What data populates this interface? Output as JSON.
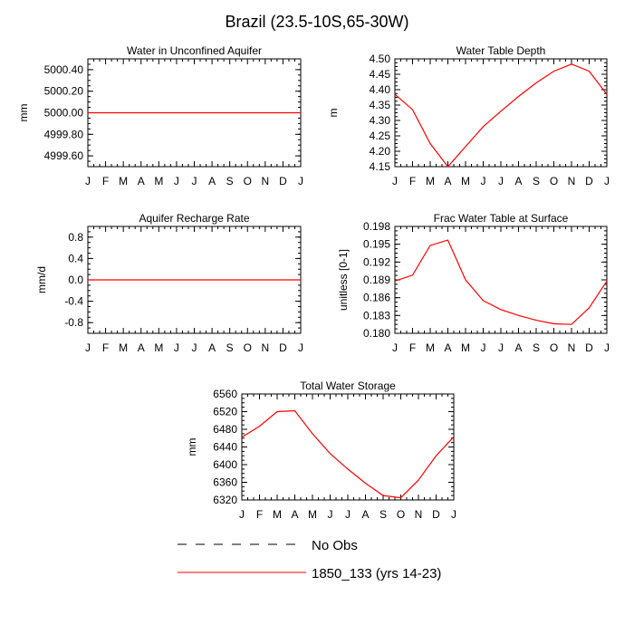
{
  "page": {
    "title": "Brazil (23.5-10S,65-30W)"
  },
  "colors": {
    "model": "#ff0000",
    "obs": "#000000",
    "axis": "#000000"
  },
  "chart_data": [
    {
      "type": "line",
      "title": "Water in Unconfined Aquifer",
      "ylabel": "mm",
      "categories": [
        "J",
        "F",
        "M",
        "A",
        "M",
        "J",
        "J",
        "A",
        "S",
        "O",
        "N",
        "D",
        "J"
      ],
      "ylim": [
        4999.5,
        5000.5
      ],
      "yticks": [
        4999.6,
        4999.8,
        5000.0,
        5000.2,
        5000.4
      ],
      "ytick_labels": [
        "4999.60",
        "4999.80",
        "5000.00",
        "5000.20",
        "5000.40"
      ],
      "series": [
        {
          "name": "1850_133 (yrs 14-23)",
          "values": [
            5000,
            5000,
            5000,
            5000,
            5000,
            5000,
            5000,
            5000,
            5000,
            5000,
            5000,
            5000,
            5000
          ]
        }
      ]
    },
    {
      "type": "line",
      "title": "Water Table Depth",
      "ylabel": "m",
      "categories": [
        "J",
        "F",
        "M",
        "A",
        "M",
        "J",
        "J",
        "A",
        "S",
        "O",
        "N",
        "D",
        "J"
      ],
      "ylim": [
        4.15,
        4.5
      ],
      "yticks": [
        4.15,
        4.2,
        4.25,
        4.3,
        4.35,
        4.4,
        4.45,
        4.5
      ],
      "ytick_labels": [
        "4.15",
        "4.20",
        "4.25",
        "4.30",
        "4.35",
        "4.40",
        "4.45",
        "4.50"
      ],
      "series": [
        {
          "name": "1850_133 (yrs 14-23)",
          "values": [
            4.385,
            4.335,
            4.225,
            4.15,
            4.215,
            4.28,
            4.33,
            4.378,
            4.422,
            4.46,
            4.483,
            4.46,
            4.385
          ]
        }
      ]
    },
    {
      "type": "line",
      "title": "Aquifer Recharge Rate",
      "ylabel": "mm/d",
      "categories": [
        "J",
        "F",
        "M",
        "A",
        "M",
        "J",
        "J",
        "A",
        "S",
        "O",
        "N",
        "D",
        "J"
      ],
      "ylim": [
        -1.0,
        1.0
      ],
      "yticks": [
        -0.8,
        -0.4,
        0.0,
        0.4,
        0.8
      ],
      "ytick_labels": [
        "-0.8",
        "-0.4",
        "0.0",
        "0.4",
        "0.8"
      ],
      "series": [
        {
          "name": "1850_133 (yrs 14-23)",
          "values": [
            0,
            0,
            0,
            0,
            0,
            0,
            0,
            0,
            0,
            0,
            0,
            0,
            0
          ]
        }
      ]
    },
    {
      "type": "line",
      "title": "Frac Water Table at Surface",
      "ylabel": "unitless [0-1]",
      "categories": [
        "J",
        "F",
        "M",
        "A",
        "M",
        "J",
        "J",
        "A",
        "S",
        "O",
        "N",
        "D",
        "J"
      ],
      "ylim": [
        0.18,
        0.198
      ],
      "yticks": [
        0.18,
        0.183,
        0.186,
        0.189,
        0.192,
        0.195,
        0.198
      ],
      "ytick_labels": [
        "0.180",
        "0.183",
        "0.186",
        "0.189",
        "0.192",
        "0.195",
        "0.198"
      ],
      "series": [
        {
          "name": "1850_133 (yrs 14-23)",
          "values": [
            0.1888,
            0.1898,
            0.1948,
            0.1957,
            0.189,
            0.1855,
            0.184,
            0.183,
            0.1822,
            0.1816,
            0.1815,
            0.1843,
            0.1888
          ]
        }
      ]
    },
    {
      "type": "line",
      "title": "Total Water Storage",
      "ylabel": "mm",
      "categories": [
        "J",
        "F",
        "M",
        "A",
        "M",
        "J",
        "J",
        "A",
        "S",
        "O",
        "N",
        "D",
        "J"
      ],
      "ylim": [
        6320,
        6560
      ],
      "yticks": [
        6320,
        6360,
        6400,
        6440,
        6480,
        6520,
        6560
      ],
      "ytick_labels": [
        "6320",
        "6360",
        "6400",
        "6440",
        "6480",
        "6520",
        "6560"
      ],
      "series": [
        {
          "name": "1850_133 (yrs 14-23)",
          "values": [
            6462,
            6487,
            6520,
            6522,
            6470,
            6425,
            6390,
            6358,
            6330,
            6325,
            6365,
            6420,
            6463
          ]
        }
      ]
    }
  ],
  "legend": [
    {
      "label": "No Obs",
      "style": "dashed",
      "color": "#000000"
    },
    {
      "label": "1850_133 (yrs 14-23)",
      "style": "solid",
      "color": "#ff0000"
    }
  ]
}
